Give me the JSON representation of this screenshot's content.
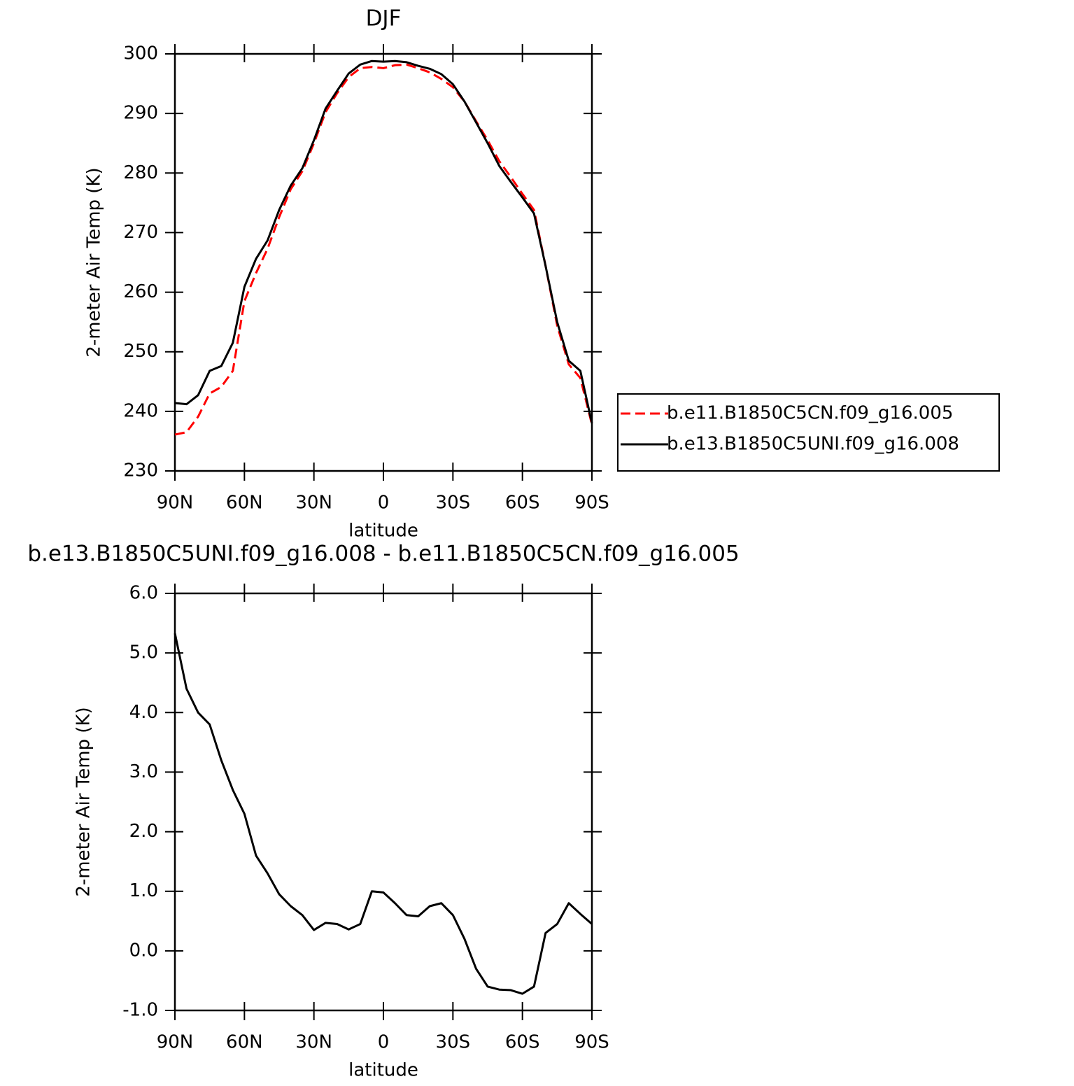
{
  "chart_data": [
    {
      "type": "line",
      "title": "DJF",
      "xlabel": "latitude",
      "ylabel": "2-meter Air Temp (K)",
      "x": [
        90,
        85,
        80,
        75,
        70,
        65,
        60,
        55,
        50,
        45,
        40,
        35,
        30,
        25,
        20,
        15,
        10,
        5,
        0,
        -5,
        -10,
        -15,
        -20,
        -25,
        -30,
        -35,
        -40,
        -45,
        -50,
        -55,
        -60,
        -65,
        -70,
        -75,
        -80,
        -85,
        -90
      ],
      "series": [
        {
          "name": "b.e11.B1850C5CN.f09_g16.005",
          "color": "#ff0000",
          "dashed": true,
          "values": [
            236.1,
            236.5,
            239.1,
            243.0,
            244.1,
            246.8,
            258.5,
            263.2,
            267.3,
            272.6,
            277.3,
            280.3,
            285.0,
            290.2,
            293.4,
            296.1,
            297.6,
            297.8,
            297.6,
            298.1,
            298.2,
            297.6,
            296.9,
            295.8,
            294.4,
            292.0,
            288.7,
            285.5,
            282.0,
            279.3,
            276.5,
            273.8,
            264.4,
            254.4,
            247.9,
            245.6,
            237.8
          ]
        },
        {
          "name": "b.e13.B1850C5UNI.f09_g16.008",
          "color": "#000000",
          "dashed": false,
          "values": [
            241.4,
            241.2,
            242.7,
            246.8,
            247.6,
            251.5,
            260.9,
            265.6,
            268.7,
            273.8,
            277.9,
            280.8,
            285.5,
            290.8,
            293.8,
            296.7,
            298.2,
            298.8,
            298.7,
            298.8,
            298.6,
            298.0,
            297.5,
            296.6,
            294.9,
            292.0,
            288.5,
            285.0,
            281.2,
            278.5,
            275.9,
            273.2,
            264.4,
            255.0,
            248.5,
            246.8,
            238.0
          ]
        }
      ],
      "xlim": [
        90,
        -90
      ],
      "xticks": [
        {
          "value": 90,
          "label": "90N"
        },
        {
          "value": 60,
          "label": "60N"
        },
        {
          "value": 30,
          "label": "30N"
        },
        0,
        {
          "value": -30,
          "label": "30S"
        },
        {
          "value": -60,
          "label": "60S"
        },
        {
          "value": -90,
          "label": "90S"
        }
      ],
      "ylim": [
        230,
        300
      ],
      "yticks": [
        230,
        240,
        250,
        260,
        270,
        280,
        290,
        300
      ],
      "legend": "outside-right"
    },
    {
      "type": "line",
      "title": "b.e13.B1850C5UNI.f09_g16.008 - b.e11.B1850C5CN.f09_g16.005",
      "xlabel": "latitude",
      "ylabel": "2-meter Air Temp (K)",
      "x": [
        90,
        85,
        80,
        75,
        70,
        65,
        60,
        55,
        50,
        45,
        40,
        35,
        30,
        25,
        20,
        15,
        10,
        5,
        0,
        -5,
        -10,
        -15,
        -20,
        -25,
        -30,
        -35,
        -40,
        -45,
        -50,
        -55,
        -60,
        -65,
        -70,
        -75,
        -80,
        -85,
        -90
      ],
      "series": [
        {
          "color": "#000000",
          "dashed": false,
          "values": [
            5.33,
            4.4,
            4.0,
            3.8,
            3.2,
            2.7,
            2.3,
            1.6,
            1.3,
            0.95,
            0.75,
            0.6,
            0.35,
            0.47,
            0.45,
            0.36,
            0.45,
            1.0,
            0.98,
            0.8,
            0.6,
            0.58,
            0.75,
            0.8,
            0.6,
            0.2,
            -0.3,
            -0.6,
            -0.65,
            -0.66,
            -0.72,
            -0.6,
            0.3,
            0.45,
            0.8,
            0.62,
            0.45
          ]
        }
      ],
      "xlim": [
        90,
        -90
      ],
      "xticks": [
        {
          "value": 90,
          "label": "90N"
        },
        {
          "value": 60,
          "label": "60N"
        },
        {
          "value": 30,
          "label": "30N"
        },
        0,
        {
          "value": -30,
          "label": "30S"
        },
        {
          "value": -60,
          "label": "60S"
        },
        {
          "value": -90,
          "label": "90S"
        }
      ],
      "ylim": [
        -1,
        6
      ],
      "yticks": [
        {
          "value": -1,
          "label": "-1.0"
        },
        {
          "value": 0,
          "label": "0.0"
        },
        {
          "value": 1,
          "label": "1.0"
        },
        {
          "value": 2,
          "label": "2.0"
        },
        {
          "value": 3,
          "label": "3.0"
        },
        {
          "value": 4,
          "label": "4.0"
        },
        {
          "value": 5,
          "label": "5.0"
        },
        {
          "value": 6,
          "label": "6.0"
        }
      ]
    }
  ]
}
